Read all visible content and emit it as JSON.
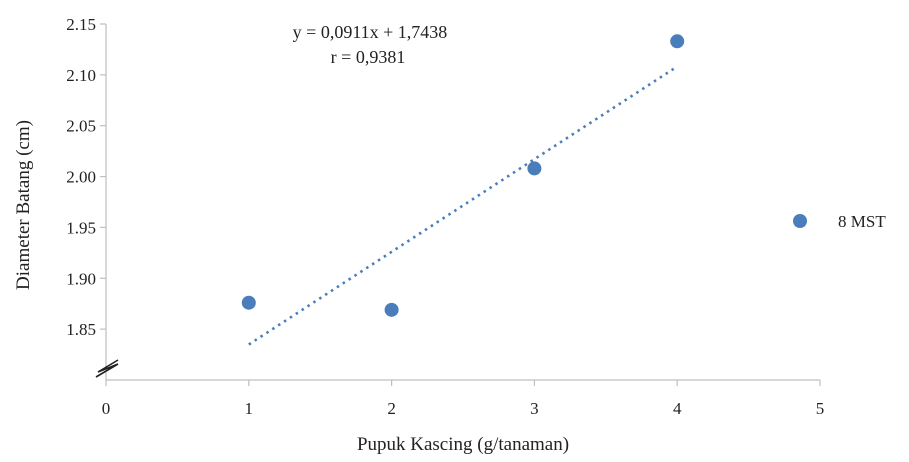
{
  "chart_data": {
    "type": "scatter",
    "xlabel": "Pupuk Kascing (g/tanaman)",
    "ylabel": "Diameter Batang (cm)",
    "xlim": [
      0,
      5
    ],
    "ylim": [
      1.8,
      2.15
    ],
    "x_ticks": [
      "0",
      "1",
      "2",
      "3",
      "4",
      "5"
    ],
    "y_ticks": [
      "1.85",
      "1.90",
      "1.95",
      "2.00",
      "2.05",
      "2.10",
      "2.15"
    ],
    "axis_break": "y-axis",
    "grid": false,
    "legend_position": "right",
    "series": [
      {
        "name": "8 MST",
        "color": "#4a7ebb",
        "points": [
          {
            "x": 1,
            "y": 1.876
          },
          {
            "x": 2,
            "y": 1.869
          },
          {
            "x": 3,
            "y": 2.008
          },
          {
            "x": 4,
            "y": 2.133
          }
        ]
      }
    ],
    "trendline": {
      "type": "linear",
      "slope": 0.0911,
      "intercept": 1.7438,
      "x_range": [
        1,
        4
      ],
      "style": "dotted",
      "color": "#4a7ebb"
    },
    "annotations": {
      "equation": "y = 0,0911x + 1,7438",
      "r_value": "r = 0,9381"
    }
  }
}
